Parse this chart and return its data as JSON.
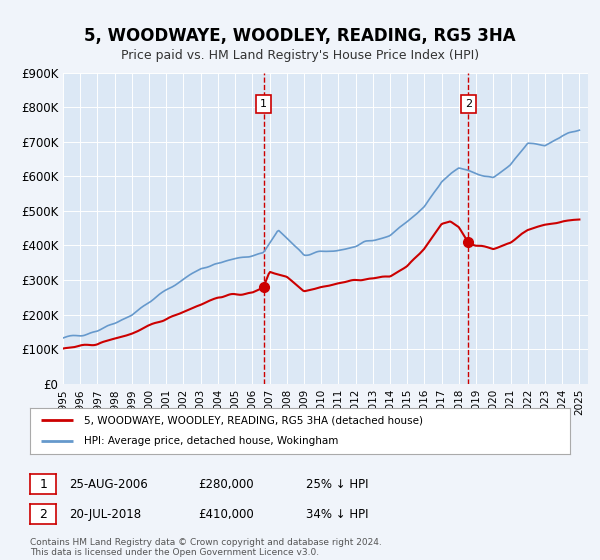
{
  "title": "5, WOODWAYE, WOODLEY, READING, RG5 3HA",
  "subtitle": "Price paid vs. HM Land Registry's House Price Index (HPI)",
  "background_color": "#f0f4fa",
  "plot_bg_color": "#dce8f5",
  "ylim": [
    0,
    900000
  ],
  "yticks": [
    0,
    100000,
    200000,
    300000,
    400000,
    500000,
    600000,
    700000,
    800000,
    900000
  ],
  "ytick_labels": [
    "£0",
    "£100K",
    "£200K",
    "£300K",
    "£400K",
    "£500K",
    "£600K",
    "£700K",
    "£800K",
    "£900K"
  ],
  "xlim_start": 1995.0,
  "xlim_end": 2025.5,
  "marker1_x": 2006.65,
  "marker1_y": 280000,
  "marker2_x": 2018.55,
  "marker2_y": 410000,
  "legend_label_red": "5, WOODWAYE, WOODLEY, READING, RG5 3HA (detached house)",
  "legend_label_blue": "HPI: Average price, detached house, Wokingham",
  "annotation1_date": "25-AUG-2006",
  "annotation1_price": "£280,000",
  "annotation1_hpi": "25% ↓ HPI",
  "annotation2_date": "20-JUL-2018",
  "annotation2_price": "£410,000",
  "annotation2_hpi": "34% ↓ HPI",
  "footer": "Contains HM Land Registry data © Crown copyright and database right 2024.\nThis data is licensed under the Open Government Licence v3.0.",
  "red_color": "#cc0000",
  "blue_color": "#6699cc",
  "dashed_color": "#cc0000",
  "hpi_years": [
    1995,
    1997,
    1999,
    2001,
    2003,
    2005,
    2006.65,
    2007.5,
    2009,
    2010,
    2012,
    2014,
    2016,
    2017,
    2018,
    2019.5,
    2020,
    2021,
    2022,
    2023,
    2024,
    2025
  ],
  "hpi_values": [
    130000,
    155000,
    200000,
    270000,
    335000,
    360000,
    380000,
    445000,
    370000,
    380000,
    395000,
    430000,
    510000,
    590000,
    625000,
    600000,
    595000,
    630000,
    695000,
    690000,
    720000,
    735000
  ],
  "red_years": [
    1995,
    1997,
    1999,
    2000,
    2002,
    2004,
    2005,
    2006,
    2006.65,
    2007,
    2008,
    2009,
    2010,
    2011,
    2012,
    2013,
    2014,
    2015,
    2016,
    2017,
    2017.5,
    2018,
    2018.55,
    2019,
    2020,
    2021,
    2022,
    2023,
    2024,
    2025
  ],
  "red_values": [
    100000,
    115000,
    145000,
    165000,
    210000,
    250000,
    258000,
    262000,
    280000,
    325000,
    310000,
    270000,
    280000,
    290000,
    300000,
    305000,
    310000,
    340000,
    390000,
    460000,
    470000,
    455000,
    410000,
    400000,
    390000,
    410000,
    445000,
    460000,
    470000,
    475000
  ]
}
